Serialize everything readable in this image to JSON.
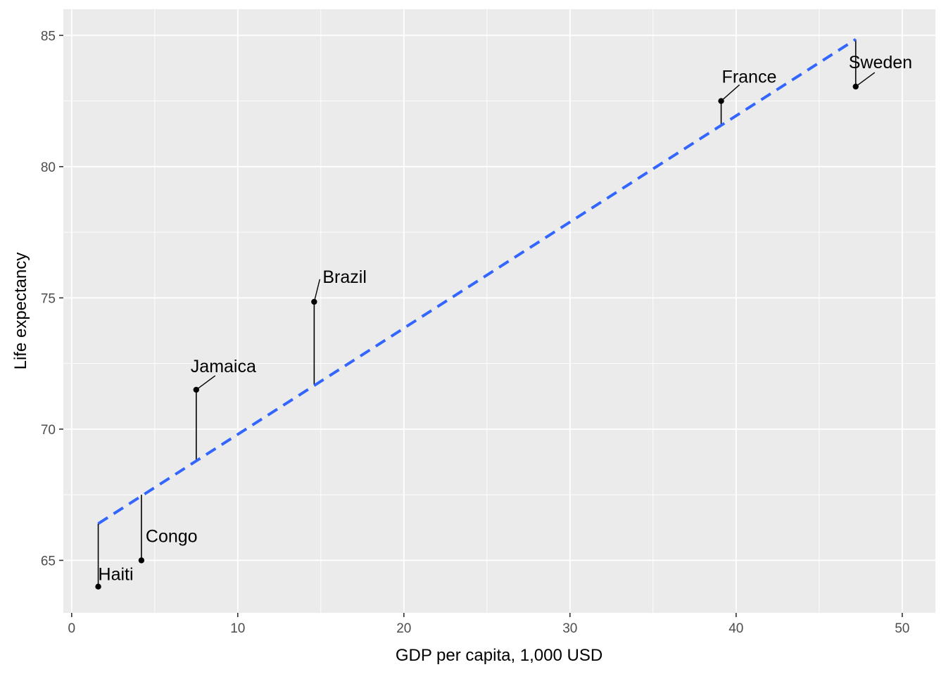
{
  "chart_data": {
    "type": "scatter",
    "title": "",
    "xlabel": "GDP per capita, 1,000 USD",
    "ylabel": "Life expectancy",
    "xlim": [
      -0.5,
      52
    ],
    "ylim": [
      63,
      86
    ],
    "x_ticks": [
      0,
      10,
      20,
      30,
      40,
      50
    ],
    "y_ticks": [
      65,
      70,
      75,
      80,
      85
    ],
    "x_tick_labels": [
      "0",
      "10",
      "20",
      "30",
      "40",
      "50"
    ],
    "y_tick_labels": [
      "65",
      "70",
      "75",
      "80",
      "85"
    ],
    "grid": true,
    "legend": "none",
    "points": [
      {
        "label": "Haiti",
        "x": 1.6,
        "y": 64.0,
        "fitted": 66.4
      },
      {
        "label": "Congo",
        "x": 4.2,
        "y": 65.0,
        "fitted": 67.5
      },
      {
        "label": "Jamaica",
        "x": 7.5,
        "y": 71.5,
        "fitted": 68.8
      },
      {
        "label": "Brazil",
        "x": 14.6,
        "y": 74.85,
        "fitted": 71.7
      },
      {
        "label": "France",
        "x": 39.1,
        "y": 82.5,
        "fitted": 81.6
      },
      {
        "label": "Sweden",
        "x": 47.2,
        "y": 83.05,
        "fitted": 84.85
      }
    ],
    "fit_line": {
      "style": "dashed",
      "color": "#3366FF",
      "x": [
        1.6,
        47.2
      ],
      "y": [
        66.4,
        84.85
      ]
    }
  },
  "colors": {
    "panel_background": "#EBEBEB",
    "grid_major": "#FFFFFF",
    "point": "#000000",
    "residual": "#000000",
    "fit_line": "#3366FF"
  }
}
